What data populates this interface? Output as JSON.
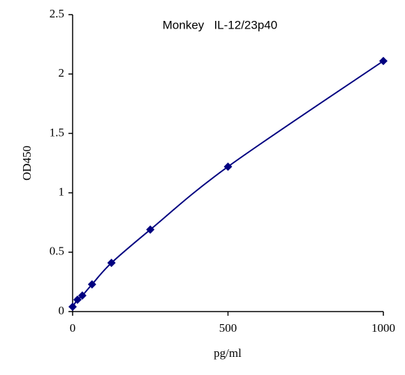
{
  "chart_data": {
    "type": "line",
    "title": "Monkey   IL-12/23p40",
    "x_label": "pg/ml",
    "y_label": "OD450",
    "x": [
      0,
      15.6,
      31.25,
      62.5,
      125,
      250,
      500,
      1000
    ],
    "series": [
      {
        "name": "OD450",
        "color": "#000080",
        "values": [
          0.04,
          0.1,
          0.135,
          0.229,
          0.41,
          0.69,
          1.22,
          2.11
        ]
      }
    ],
    "xlim": [
      0,
      1000
    ],
    "xticks": [
      0,
      500,
      1000
    ],
    "ylim": [
      0,
      2.5
    ],
    "yticks": [
      0,
      0.5,
      1,
      1.5,
      2,
      2.5
    ],
    "grid": false,
    "marker": "diamond"
  }
}
